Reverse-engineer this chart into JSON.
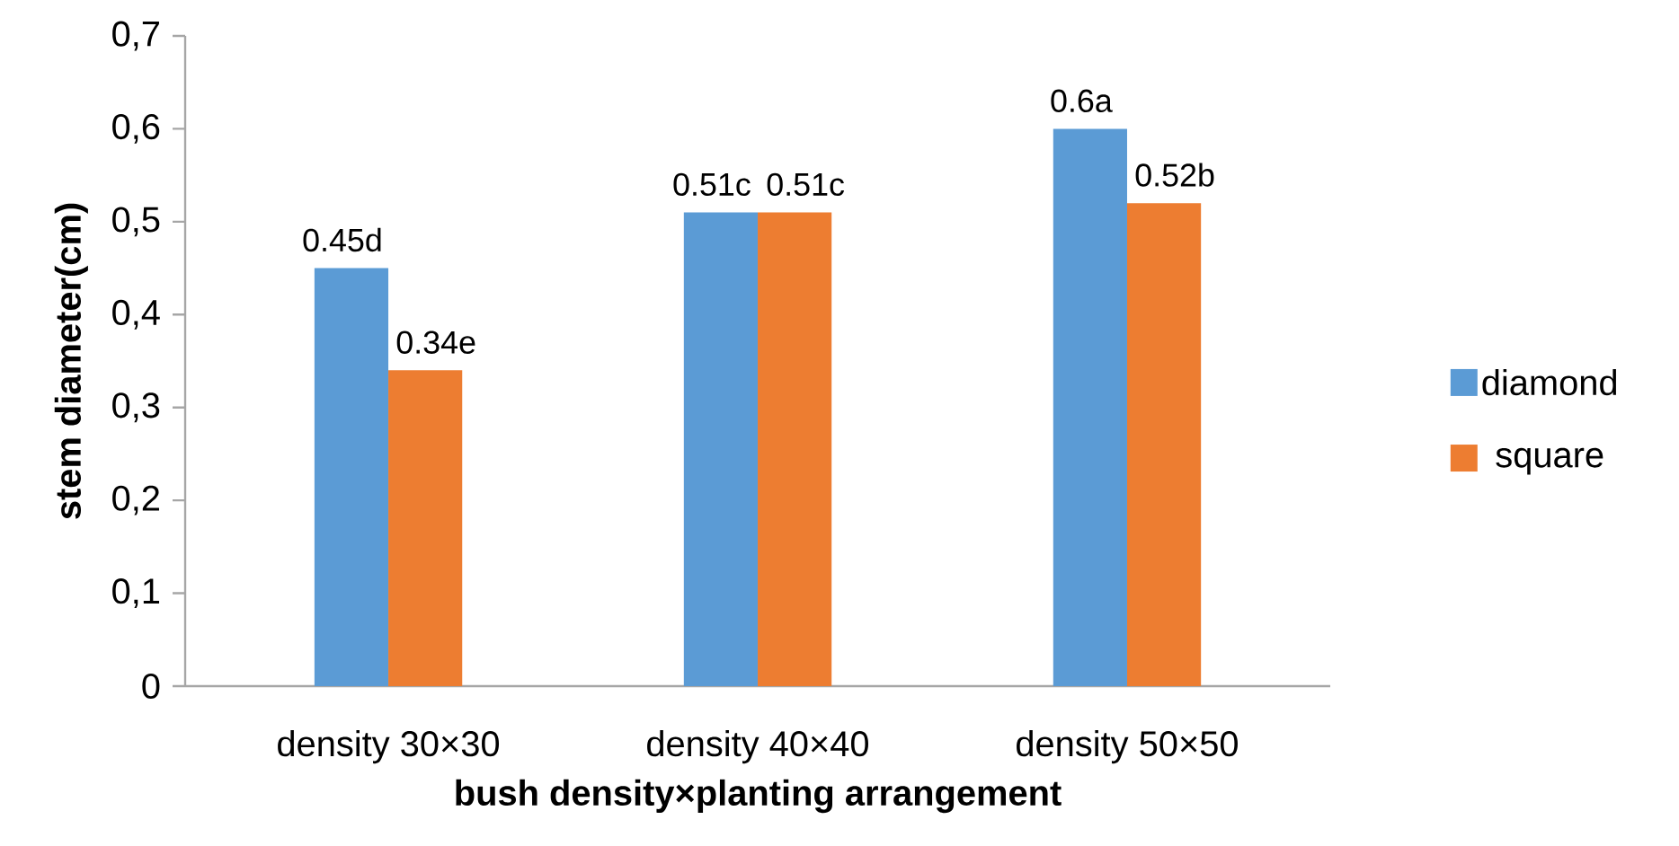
{
  "chart_data": {
    "type": "bar",
    "xlabel": "bush density×planting arrangement",
    "ylabel": "stem diameter(cm)",
    "categories": [
      "density 30×30",
      "density 40×40",
      "density 50×50"
    ],
    "series": [
      {
        "name": "diamond",
        "color": "#5b9bd5",
        "values": [
          0.45,
          0.51,
          0.6
        ],
        "value_labels": [
          "0.45d",
          "0.51c",
          "0.6a"
        ]
      },
      {
        "name": "square",
        "color": "#ed7d31",
        "values": [
          0.34,
          0.51,
          0.52
        ],
        "value_labels": [
          "0.34e",
          "0.51c",
          "0.52b"
        ]
      }
    ],
    "ylim": [
      0,
      0.7
    ],
    "yticks": [
      0,
      {
        "value": 0.1,
        "label": "0,1"
      },
      {
        "value": 0.2,
        "label": "0,2"
      },
      {
        "value": 0.3,
        "label": "0,3"
      },
      {
        "value": 0.4,
        "label": "0,4"
      },
      {
        "value": 0.5,
        "label": "0,5"
      },
      {
        "value": 0.6,
        "label": "0,6"
      },
      {
        "value": 0.7,
        "label": "0,7"
      }
    ],
    "legend": "right"
  }
}
